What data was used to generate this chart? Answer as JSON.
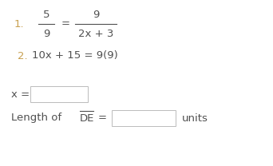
{
  "bg_color": "#ffffff",
  "number_color": "#c8a050",
  "text_color": "#505050",
  "line1_num_label": "1.",
  "line1_frac1_top": "5",
  "line1_frac1_bot": "9",
  "line1_eq": "=",
  "line1_frac2_top": "9",
  "line1_frac2_bot": "2x + 3",
  "line2_num_label": "2.",
  "line2_text": "10x + 15 = 9(9)",
  "label_x": "x =",
  "label_length": "Length of",
  "label_de": "DE",
  "label_eq2": "=",
  "label_units": "units",
  "fs": 9.5
}
